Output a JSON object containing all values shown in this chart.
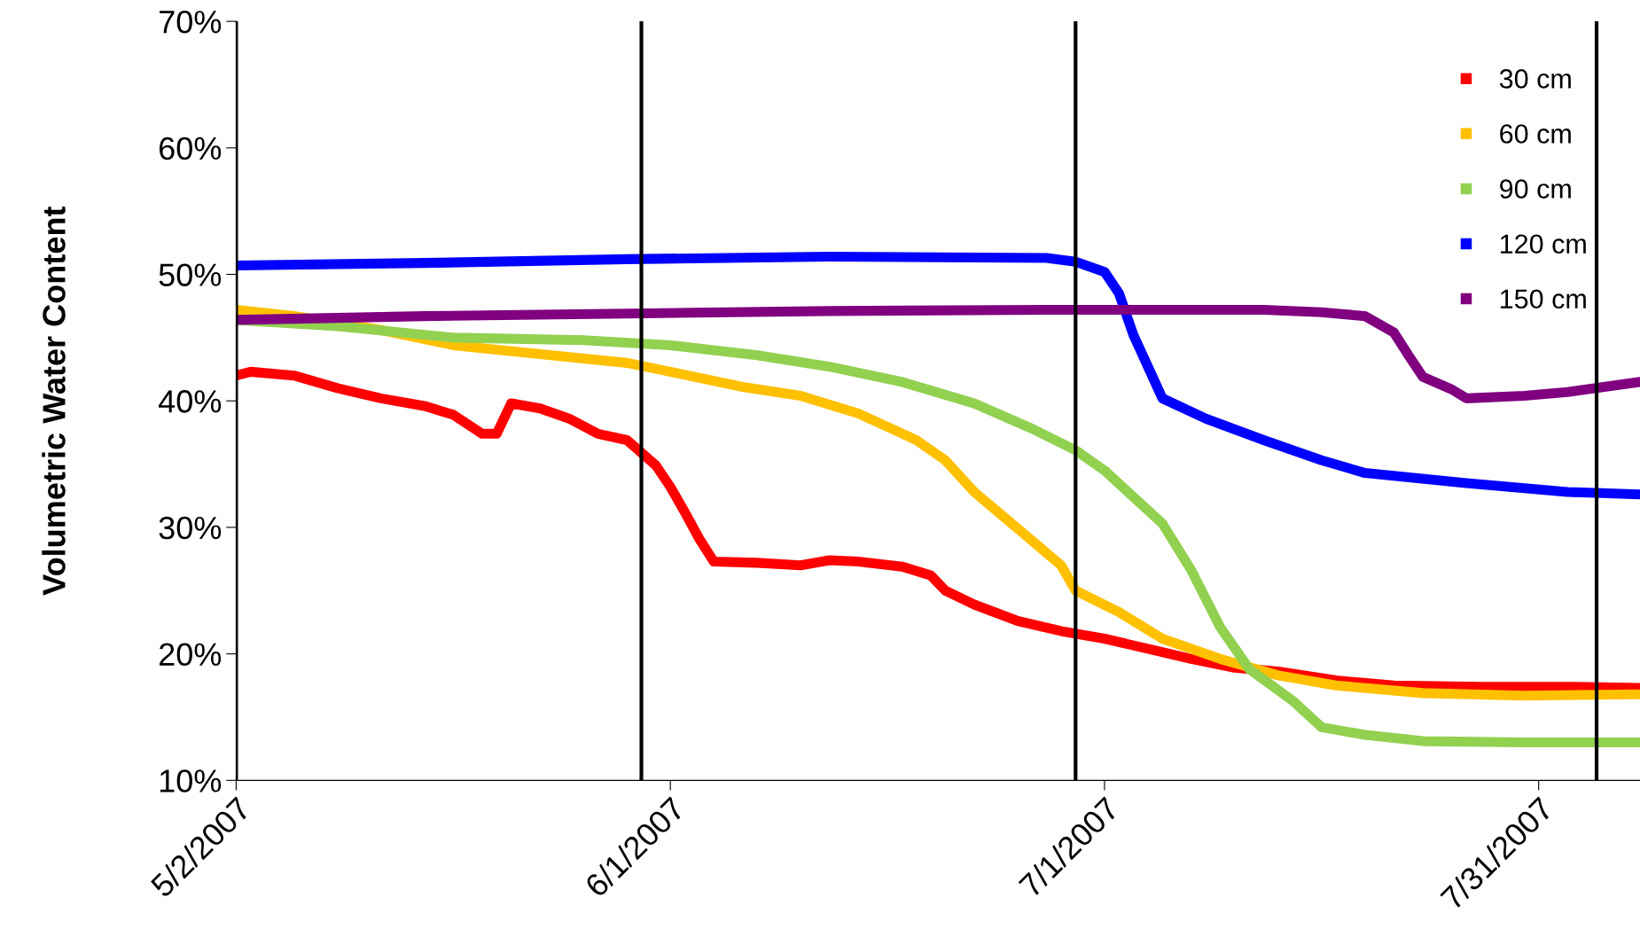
{
  "chart_data": {
    "type": "line",
    "ylabel": "Volumetric Water Content",
    "xlim": [
      "2007-05-02",
      "2007-08-07"
    ],
    "xticks": [
      {
        "value": "2007-05-02",
        "label": "5/2/2007"
      },
      {
        "value": "2007-06-01",
        "label": "6/1/2007"
      },
      {
        "value": "2007-07-01",
        "label": "7/1/2007"
      },
      {
        "value": "2007-07-31",
        "label": "7/31/2007"
      }
    ],
    "ylim": [
      10,
      70
    ],
    "yticks": [
      {
        "value": 10,
        "label": "10%"
      },
      {
        "value": 20,
        "label": "20%"
      },
      {
        "value": 30,
        "label": "30%"
      },
      {
        "value": 40,
        "label": "40%"
      },
      {
        "value": 50,
        "label": "50%"
      },
      {
        "value": 60,
        "label": "60%"
      },
      {
        "value": 70,
        "label": "70%"
      }
    ],
    "grid": false,
    "legend": "top right",
    "line_style": "solid",
    "ref_lines": [
      {
        "axis": "x",
        "value": "2007-05-02",
        "color": "#000000"
      },
      {
        "axis": "x",
        "value": "2007-05-30",
        "color": "#000000"
      },
      {
        "axis": "x",
        "value": "2007-06-29",
        "color": "#000000"
      },
      {
        "axis": "x",
        "value": "2007-08-04",
        "color": "#000000"
      }
    ],
    "series": [
      {
        "name": "30 cm",
        "color": "#ff0000",
        "x": [
          "2007-05-02",
          "2007-05-03",
          "2007-05-06",
          "2007-05-09",
          "2007-05-12",
          "2007-05-15",
          "2007-05-17",
          "2007-05-19",
          "2007-05-20",
          "2007-05-21",
          "2007-05-23",
          "2007-05-25",
          "2007-05-27",
          "2007-05-29",
          "2007-05-30",
          "2007-05-31",
          "2007-06-01",
          "2007-06-02",
          "2007-06-03",
          "2007-06-04",
          "2007-06-07",
          "2007-06-10",
          "2007-06-12",
          "2007-06-14",
          "2007-06-17",
          "2007-06-19",
          "2007-06-20",
          "2007-06-22",
          "2007-06-25",
          "2007-06-28",
          "2007-07-01",
          "2007-07-04",
          "2007-07-07",
          "2007-07-10",
          "2007-07-13",
          "2007-07-17",
          "2007-07-21",
          "2007-07-27",
          "2007-08-02",
          "2007-08-07"
        ],
        "values": [
          42.0,
          42.3,
          42.0,
          41.0,
          40.2,
          39.6,
          38.9,
          37.4,
          37.4,
          39.8,
          39.4,
          38.6,
          37.4,
          36.9,
          35.9,
          34.9,
          33.2,
          31.2,
          29.1,
          27.3,
          27.2,
          27.0,
          27.4,
          27.3,
          26.9,
          26.2,
          25.0,
          23.9,
          22.6,
          21.8,
          21.2,
          20.4,
          19.6,
          18.9,
          18.6,
          17.9,
          17.5,
          17.4,
          17.4,
          17.3
        ]
      },
      {
        "name": "60 cm",
        "color": "#ffc000",
        "x": [
          "2007-05-02",
          "2007-05-06",
          "2007-05-12",
          "2007-05-17",
          "2007-05-23",
          "2007-05-29",
          "2007-06-01",
          "2007-06-06",
          "2007-06-10",
          "2007-06-14",
          "2007-06-18",
          "2007-06-20",
          "2007-06-22",
          "2007-06-25",
          "2007-06-28",
          "2007-06-29",
          "2007-07-02",
          "2007-07-05",
          "2007-07-09",
          "2007-07-13",
          "2007-07-17",
          "2007-07-23",
          "2007-07-30",
          "2007-08-07"
        ],
        "values": [
          47.2,
          46.7,
          45.6,
          44.4,
          43.7,
          43.0,
          42.3,
          41.1,
          40.4,
          39.0,
          36.9,
          35.3,
          32.8,
          29.9,
          27.0,
          25.0,
          23.3,
          21.2,
          19.6,
          18.3,
          17.5,
          16.9,
          16.7,
          16.8
        ]
      },
      {
        "name": "90 cm",
        "color": "#92d050",
        "x": [
          "2007-05-02",
          "2007-05-09",
          "2007-05-17",
          "2007-05-26",
          "2007-06-01",
          "2007-06-07",
          "2007-06-12",
          "2007-06-17",
          "2007-06-22",
          "2007-06-26",
          "2007-06-29",
          "2007-07-01",
          "2007-07-03",
          "2007-07-05",
          "2007-07-07",
          "2007-07-09",
          "2007-07-11",
          "2007-07-14",
          "2007-07-16",
          "2007-07-19",
          "2007-07-23",
          "2007-07-30",
          "2007-08-07"
        ],
        "values": [
          46.4,
          45.9,
          45.0,
          44.8,
          44.4,
          43.6,
          42.7,
          41.5,
          39.8,
          37.8,
          36.1,
          34.5,
          32.4,
          30.3,
          26.6,
          22.1,
          18.8,
          16.3,
          14.2,
          13.6,
          13.1,
          13.0,
          13.0
        ]
      },
      {
        "name": "120 cm",
        "color": "#0000ff",
        "x": [
          "2007-05-02",
          "2007-05-15",
          "2007-05-29",
          "2007-06-12",
          "2007-06-27",
          "2007-06-29",
          "2007-07-01",
          "2007-07-02",
          "2007-07-03",
          "2007-07-04",
          "2007-07-05",
          "2007-07-08",
          "2007-07-12",
          "2007-07-16",
          "2007-07-19",
          "2007-07-26",
          "2007-08-02",
          "2007-08-07"
        ],
        "values": [
          50.7,
          50.9,
          51.2,
          51.4,
          51.3,
          51.0,
          50.2,
          48.5,
          45.2,
          42.7,
          40.2,
          38.6,
          36.9,
          35.3,
          34.3,
          33.5,
          32.8,
          32.6
        ]
      },
      {
        "name": "150 cm",
        "color": "#800080",
        "x": [
          "2007-05-02",
          "2007-05-15",
          "2007-05-29",
          "2007-06-12",
          "2007-06-27",
          "2007-07-12",
          "2007-07-16",
          "2007-07-19",
          "2007-07-21",
          "2007-07-22",
          "2007-07-23",
          "2007-07-25",
          "2007-07-26",
          "2007-07-30",
          "2007-08-02",
          "2007-08-07"
        ],
        "values": [
          46.4,
          46.7,
          46.9,
          47.1,
          47.2,
          47.2,
          47.0,
          46.7,
          45.4,
          43.6,
          41.9,
          40.9,
          40.2,
          40.4,
          40.7,
          41.5
        ]
      }
    ]
  }
}
